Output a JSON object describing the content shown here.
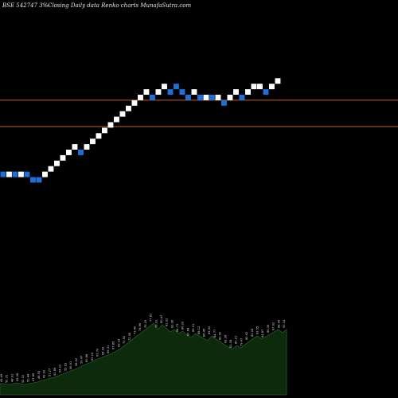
{
  "header": {
    "symbol": "BSE 542747 3%-",
    "title": "Closing Daily data  Renko  charts MunafaSutra.com"
  },
  "colors": {
    "background": "#000000",
    "up_brick": "#ffffff",
    "down_brick": "#1e6fd9",
    "reference_line": "#c0601a",
    "volume_fill": "#0d2a0d",
    "volume_stroke": "#1f5a1f"
  },
  "chart_data": {
    "type": "renko",
    "title": "Closing Daily data  Renko  charts MunafaSutra.com",
    "box_size_percent": 3,
    "levels": [
      6,
      6,
      6,
      6,
      6,
      5,
      5,
      6,
      7,
      8,
      9,
      10,
      11,
      10,
      11,
      12,
      13,
      14,
      15,
      16,
      17,
      18,
      19,
      20,
      21,
      20,
      21,
      22,
      21,
      22,
      21,
      20,
      21,
      20,
      20,
      20,
      20,
      19,
      20,
      21,
      20,
      21,
      22,
      22,
      21,
      22,
      23
    ],
    "directions": [
      "down",
      "up",
      "down",
      "up",
      "down",
      "down",
      "down",
      "up",
      "up",
      "up",
      "up",
      "up",
      "up",
      "down",
      "up",
      "up",
      "up",
      "up",
      "up",
      "up",
      "up",
      "up",
      "up",
      "up",
      "up",
      "down",
      "up",
      "up",
      "down",
      "down",
      "down",
      "down",
      "up",
      "down",
      "up",
      "down",
      "up",
      "down",
      "up",
      "up",
      "down",
      "up",
      "up",
      "up",
      "down",
      "up",
      "up"
    ],
    "reference_lines": [
      {
        "label": "upper",
        "level": 19.5
      },
      {
        "label": "lower",
        "level": 14.7
      }
    ],
    "volume_labels": [
      "49.45",
      "50.72",
      "48.91",
      "49.38",
      "52.10",
      "50.44",
      "47.86",
      "48.53",
      "49.90",
      "51.27",
      "52.84",
      "54.10",
      "55.63",
      "56.91",
      "58.02",
      "59.47",
      "60.88",
      "62.15",
      "63.70",
      "64.92",
      "66.31",
      "67.85",
      "69.14",
      "70.52",
      "72.08",
      "73.40",
      "74.96",
      "76.25",
      "77.81",
      "79.03",
      "80.47",
      "81.92",
      "83.36",
      "84.73",
      "86.20",
      "87.64",
      "89.01",
      "88.12",
      "86.45",
      "85.90",
      "84.77",
      "83.50",
      "82.36",
      "81.08",
      "80.21",
      "79.47",
      "80.92",
      "82.04",
      "83.55",
      "84.87",
      "86.39",
      "87.62",
      "88.95",
      "90.14"
    ],
    "volume_values": [
      14,
      14,
      13,
      14,
      15,
      14,
      13,
      14,
      15,
      16,
      18,
      19,
      21,
      22,
      24,
      26,
      28,
      30,
      32,
      34,
      37,
      39,
      41,
      44,
      46,
      48,
      50,
      52,
      55,
      58,
      62,
      66,
      70,
      74,
      78,
      82,
      86,
      90,
      82,
      88,
      84,
      79,
      82,
      77,
      80,
      75,
      72,
      77,
      74,
      71,
      68,
      74,
      70,
      67,
      63,
      60,
      57,
      62,
      59,
      63,
      67,
      71,
      74,
      70,
      73,
      76,
      79,
      82,
      78,
      82
    ]
  }
}
